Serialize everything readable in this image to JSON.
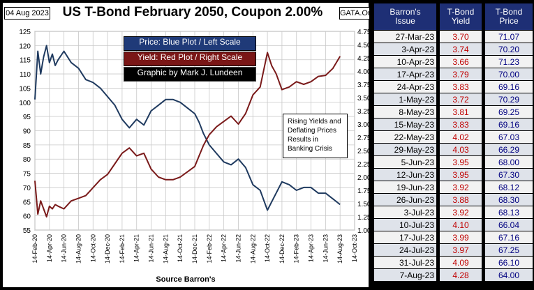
{
  "header": {
    "date_badge": "04 Aug 2023",
    "title": "US T-Bond February 2050, Coupon 2.00%",
    "source_tag": "GATA.Org"
  },
  "legend": {
    "price": "Price: Blue Plot / Left Scale",
    "yield": "Yield: Red Plot / Right Scale",
    "credit": "Graphic by Mark J. Lundeen"
  },
  "annotation": [
    "Rising Yields and",
    "Deflating Prices",
    "Results in",
    "Banking Crisis"
  ],
  "source": "Source Barron's",
  "colors": {
    "price": "#1f3a5f",
    "yield": "#7a1a1a",
    "table_header": "#1e2f75",
    "yield_text": "#c00000",
    "price_text": "#000080"
  },
  "chart_data": {
    "type": "line",
    "title": "US T-Bond February 2050, Coupon 2.00%",
    "x_tick_labels": [
      "14-Feb-20",
      "14-Apr-20",
      "14-Jun-20",
      "14-Aug-20",
      "14-Oct-20",
      "14-Dec-20",
      "14-Feb-21",
      "14-Apr-21",
      "14-Jun-21",
      "14-Aug-21",
      "14-Oct-21",
      "14-Dec-21",
      "14-Feb-22",
      "14-Apr-22",
      "14-Jun-22",
      "14-Aug-22",
      "14-Oct-22",
      "14-Dec-22",
      "14-Feb-23",
      "14-Apr-23",
      "14-Jun-23",
      "14-Aug-23",
      "14-Oct-23"
    ],
    "left_axis": {
      "label": "Price",
      "ylim": [
        55,
        125
      ],
      "ticks": [
        55,
        60,
        65,
        70,
        75,
        80,
        85,
        90,
        95,
        100,
        105,
        110,
        115,
        120,
        125
      ]
    },
    "right_axis": {
      "label": "Yield",
      "ylim": [
        1.0,
        4.75
      ],
      "ticks": [
        "1.00",
        "1.25",
        "1.50",
        "1.75",
        "2.00",
        "2.25",
        "2.50",
        "2.75",
        "3.00",
        "3.25",
        "3.50",
        "3.75",
        "4.00",
        "4.25",
        "4.50",
        "4.75"
      ]
    },
    "grid": true,
    "series": [
      {
        "name": "Price",
        "axis": "left",
        "x": [
          0,
          0.2,
          0.4,
          0.6,
          0.8,
          1.0,
          1.2,
          1.4,
          1.6,
          2.0,
          2.5,
          3.0,
          3.5,
          4.0,
          4.5,
          5.0,
          5.5,
          6.0,
          6.5,
          7.0,
          7.5,
          8.0,
          8.5,
          9.0,
          9.5,
          10.0,
          10.5,
          11.0,
          11.3,
          11.6,
          12.0,
          12.5,
          13.0,
          13.5,
          14.0,
          14.5,
          15.0,
          15.5,
          16.0,
          16.3,
          16.6,
          17.0,
          17.5,
          18.0,
          18.5,
          19.0,
          19.5,
          20.0,
          20.5,
          21.0
        ],
        "values": [
          101,
          118,
          110,
          116,
          120,
          114,
          117,
          113,
          115,
          118,
          114,
          112,
          108,
          107,
          105,
          102,
          99,
          94,
          91,
          94,
          92,
          97,
          99,
          101,
          101,
          100,
          98,
          96,
          93,
          89,
          85,
          82,
          79,
          78,
          80,
          77,
          71,
          69,
          62,
          65,
          68,
          72,
          71,
          69,
          70,
          70,
          68,
          68,
          66,
          64
        ]
      },
      {
        "name": "Yield",
        "axis": "right",
        "x": [
          0,
          0.2,
          0.4,
          0.6,
          0.8,
          1.0,
          1.2,
          1.4,
          1.6,
          2.0,
          2.5,
          3.0,
          3.5,
          4.0,
          4.5,
          5.0,
          5.5,
          6.0,
          6.5,
          7.0,
          7.5,
          8.0,
          8.5,
          9.0,
          9.5,
          10.0,
          10.5,
          11.0,
          11.3,
          11.6,
          12.0,
          12.5,
          13.0,
          13.5,
          14.0,
          14.5,
          15.0,
          15.5,
          16.0,
          16.3,
          16.6,
          17.0,
          17.5,
          18.0,
          18.5,
          19.0,
          19.5,
          20.0,
          20.5,
          21.0
        ],
        "values": [
          1.93,
          1.3,
          1.55,
          1.4,
          1.25,
          1.45,
          1.4,
          1.48,
          1.45,
          1.4,
          1.55,
          1.6,
          1.65,
          1.8,
          1.95,
          2.05,
          2.25,
          2.45,
          2.55,
          2.4,
          2.45,
          2.15,
          2.0,
          1.95,
          1.95,
          2.0,
          2.1,
          2.2,
          2.4,
          2.6,
          2.8,
          2.95,
          3.05,
          3.15,
          3.0,
          3.2,
          3.55,
          3.7,
          4.35,
          4.1,
          3.95,
          3.65,
          3.7,
          3.8,
          3.75,
          3.8,
          3.9,
          3.92,
          4.05,
          4.28
        ]
      }
    ],
    "annotations": [
      "Rising Yields and Deflating Prices Results in Banking Crisis"
    ]
  },
  "table": {
    "headers": {
      "issue": [
        "Barron's",
        "Issue"
      ],
      "yield": [
        "T-Bond",
        "Yield"
      ],
      "price": [
        "T-Bond",
        "Price"
      ]
    },
    "rows": [
      {
        "issue": "27-Mar-23",
        "yield": "3.70",
        "price": "71.07"
      },
      {
        "issue": "3-Apr-23",
        "yield": "3.74",
        "price": "70.20"
      },
      {
        "issue": "10-Apr-23",
        "yield": "3.66",
        "price": "71.23"
      },
      {
        "issue": "17-Apr-23",
        "yield": "3.79",
        "price": "70.00"
      },
      {
        "issue": "24-Apr-23",
        "yield": "3.83",
        "price": "69.16"
      },
      {
        "issue": "1-May-23",
        "yield": "3.72",
        "price": "70.29"
      },
      {
        "issue": "8-May-23",
        "yield": "3.81",
        "price": "69.25"
      },
      {
        "issue": "15-May-23",
        "yield": "3.83",
        "price": "69.16"
      },
      {
        "issue": "22-May-23",
        "yield": "4.02",
        "price": "67.03"
      },
      {
        "issue": "29-May-23",
        "yield": "4.03",
        "price": "66.29"
      },
      {
        "issue": "5-Jun-23",
        "yield": "3.95",
        "price": "68.00"
      },
      {
        "issue": "12-Jun-23",
        "yield": "3.95",
        "price": "67.30"
      },
      {
        "issue": "19-Jun-23",
        "yield": "3.92",
        "price": "68.12"
      },
      {
        "issue": "26-Jun-23",
        "yield": "3.88",
        "price": "68.30"
      },
      {
        "issue": "3-Jul-23",
        "yield": "3.92",
        "price": "68.13"
      },
      {
        "issue": "10-Jul-23",
        "yield": "4.10",
        "price": "66.04"
      },
      {
        "issue": "17-Jul-23",
        "yield": "3.99",
        "price": "67.16"
      },
      {
        "issue": "24-Jul-23",
        "yield": "3.97",
        "price": "67.25"
      },
      {
        "issue": "31-Jul-23",
        "yield": "4.09",
        "price": "66.10"
      },
      {
        "issue": "7-Aug-23",
        "yield": "4.28",
        "price": "64.00"
      }
    ]
  }
}
